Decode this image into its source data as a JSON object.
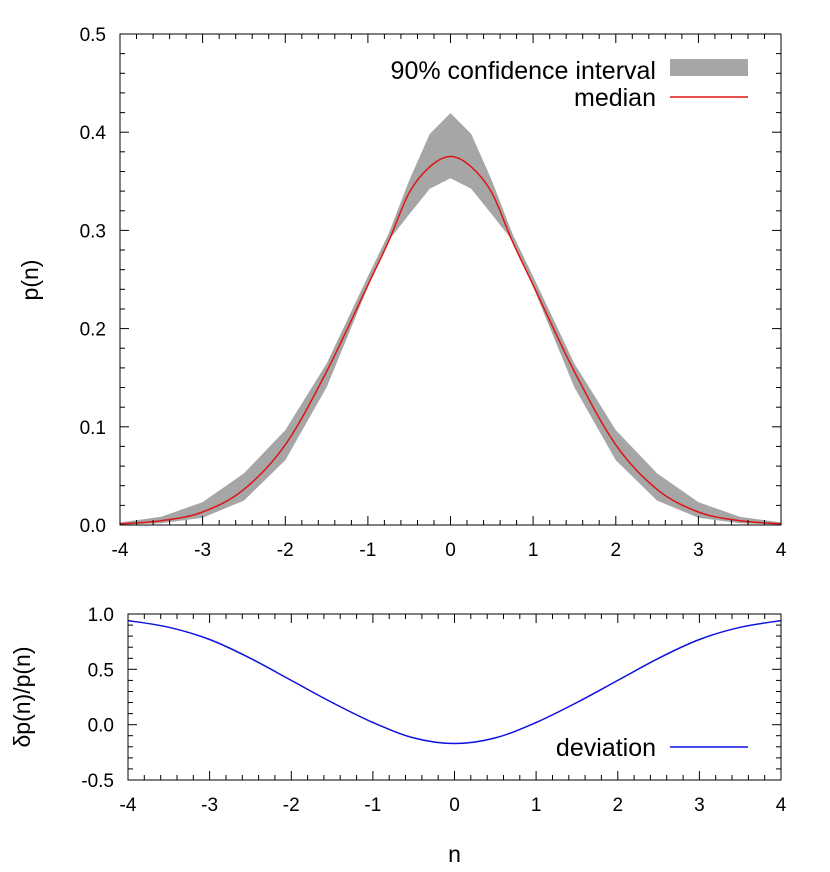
{
  "chart_data": [
    {
      "type": "area",
      "ylabel": "p(n)",
      "xlim": [
        -4,
        4
      ],
      "ylim": [
        0,
        0.5
      ],
      "xticks": [
        -4,
        -3,
        -2,
        -1,
        0,
        1,
        2,
        3,
        4
      ],
      "xtick_labels": [
        "-4",
        "-3",
        "-2",
        "-1",
        "0",
        "1",
        "2",
        "3",
        "4"
      ],
      "yticks": [
        0,
        0.1,
        0.2,
        0.3,
        0.4,
        0.5
      ],
      "ytick_labels": [
        "0.0",
        "0.1",
        "0.2",
        "0.3",
        "0.4",
        "0.5"
      ],
      "legend_position": "top-right",
      "grid": false,
      "x": [
        -4,
        -3.5,
        -3,
        -2.5,
        -2,
        -1.5,
        -1,
        -0.75,
        -0.5,
        -0.25,
        0,
        0.25,
        0.5,
        0.75,
        1,
        1.5,
        2,
        2.5,
        3,
        3.5,
        4
      ],
      "series": [
        {
          "name": "90% confidence interval",
          "kind": "band",
          "color": "#a6a6a6",
          "lower": [
            0.0003,
            0.0018,
            0.0074,
            0.0248,
            0.066,
            0.1401,
            0.2424,
            0.2895,
            0.3163,
            0.3424,
            0.3532,
            0.3424,
            0.3163,
            0.2895,
            0.2424,
            0.1401,
            0.066,
            0.0248,
            0.0074,
            0.0018,
            0.0003
          ],
          "upper": [
            0.0025,
            0.0084,
            0.0233,
            0.0525,
            0.0966,
            0.1644,
            0.2532,
            0.2964,
            0.3509,
            0.3983,
            0.4194,
            0.3983,
            0.3509,
            0.2964,
            0.2532,
            0.1644,
            0.0966,
            0.0525,
            0.0233,
            0.0084,
            0.0025
          ]
        },
        {
          "name": "median",
          "kind": "line",
          "color": "#e01414",
          "values": [
            0.0012,
            0.0044,
            0.0132,
            0.0363,
            0.0817,
            0.1562,
            0.2443,
            0.2886,
            0.3384,
            0.3648,
            0.3753,
            0.3648,
            0.3384,
            0.2886,
            0.2443,
            0.1562,
            0.0817,
            0.0363,
            0.0132,
            0.0044,
            0.0012
          ]
        }
      ]
    },
    {
      "type": "line",
      "ylabel": "δp(n)/p(n)",
      "xlabel": "n",
      "xlim": [
        -4,
        4
      ],
      "ylim": [
        -0.5,
        1.0
      ],
      "xticks": [
        -4,
        -3,
        -2,
        -1,
        0,
        1,
        2,
        3,
        4
      ],
      "xtick_labels": [
        "-4",
        "-3",
        "-2",
        "-1",
        "0",
        "1",
        "2",
        "3",
        "4"
      ],
      "yticks": [
        -0.5,
        0,
        0.5,
        1.0
      ],
      "ytick_labels": [
        "-0.5",
        "0.0",
        "0.5",
        "1.0"
      ],
      "legend_position": "bottom-right",
      "grid": false,
      "x": [
        -4,
        -3.5,
        -3,
        -2.5,
        -2,
        -1.5,
        -1,
        -0.5,
        0,
        0.5,
        1,
        1.5,
        2,
        2.5,
        3,
        3.5,
        4
      ],
      "series": [
        {
          "name": "deviation",
          "color": "#1010e0",
          "values": [
            0.94,
            0.88,
            0.77,
            0.6,
            0.4,
            0.2,
            0.02,
            -0.12,
            -0.17,
            -0.12,
            0.02,
            0.2,
            0.4,
            0.6,
            0.77,
            0.88,
            0.94
          ]
        }
      ]
    }
  ]
}
